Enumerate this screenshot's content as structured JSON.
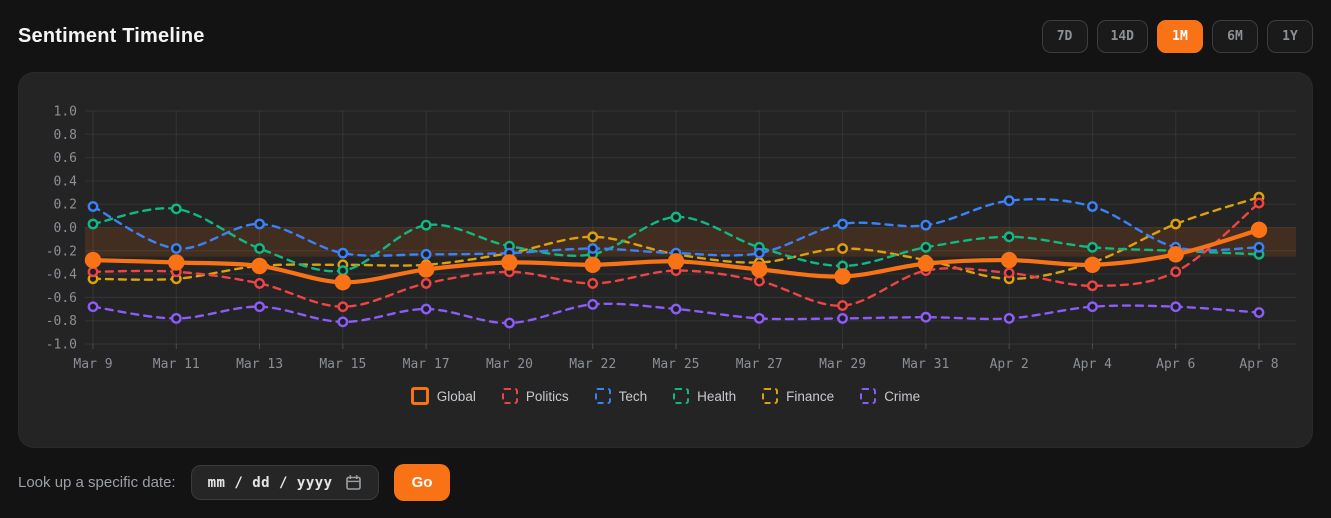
{
  "header": {
    "title": "Sentiment Timeline",
    "ranges": [
      {
        "label": "7D",
        "active": false
      },
      {
        "label": "14D",
        "active": false
      },
      {
        "label": "1M",
        "active": true
      },
      {
        "label": "6M",
        "active": false
      },
      {
        "label": "1Y",
        "active": false
      }
    ]
  },
  "colors": {
    "accent": "#f97316",
    "panel_bg": "#242424",
    "page_bg": "#131313",
    "grid": "rgba(255,255,255,0.07)",
    "axis_text": "#8b8f97"
  },
  "chart_data": {
    "type": "line",
    "title": "Sentiment Timeline",
    "xlabel": "",
    "ylabel": "",
    "ylim": [
      -1.0,
      1.0
    ],
    "ytick_step": 0.2,
    "grid": true,
    "legend_position": "bottom",
    "highlight_band": {
      "from": 0.0,
      "to": -0.25,
      "color": "rgba(249,115,22,0.14)"
    },
    "categories": [
      "Mar 9",
      "Mar 11",
      "Mar 13",
      "Mar 15",
      "Mar 17",
      "Mar 20",
      "Mar 22",
      "Mar 25",
      "Mar 27",
      "Mar 29",
      "Mar 31",
      "Apr 2",
      "Apr 4",
      "Apr 6",
      "Apr 8"
    ],
    "series": [
      {
        "name": "Global",
        "color": "#f97316",
        "style": "solid",
        "emphasis": true,
        "values": [
          -0.28,
          -0.3,
          -0.33,
          -0.47,
          -0.36,
          -0.3,
          -0.32,
          -0.29,
          -0.36,
          -0.42,
          -0.31,
          -0.28,
          -0.32,
          -0.23,
          -0.02
        ]
      },
      {
        "name": "Politics",
        "color": "#ef4444",
        "style": "dashed",
        "emphasis": false,
        "values": [
          -0.38,
          -0.38,
          -0.48,
          -0.68,
          -0.48,
          -0.38,
          -0.48,
          -0.37,
          -0.46,
          -0.67,
          -0.37,
          -0.39,
          -0.5,
          -0.38,
          0.21
        ]
      },
      {
        "name": "Tech",
        "color": "#3b82f6",
        "style": "dashed",
        "emphasis": false,
        "values": [
          0.18,
          -0.18,
          0.03,
          -0.22,
          -0.23,
          -0.22,
          -0.18,
          -0.22,
          -0.22,
          0.03,
          0.02,
          0.23,
          0.18,
          -0.17,
          -0.17
        ]
      },
      {
        "name": "Health",
        "color": "#10b981",
        "style": "dashed",
        "emphasis": false,
        "values": [
          0.03,
          0.16,
          -0.18,
          -0.37,
          0.02,
          -0.16,
          -0.23,
          0.09,
          -0.17,
          -0.33,
          -0.17,
          -0.08,
          -0.17,
          -0.2,
          -0.23
        ]
      },
      {
        "name": "Finance",
        "color": "#dda20b",
        "style": "dashed",
        "emphasis": false,
        "values": [
          -0.44,
          -0.44,
          -0.33,
          -0.32,
          -0.32,
          -0.22,
          -0.08,
          -0.23,
          -0.3,
          -0.18,
          -0.28,
          -0.44,
          -0.3,
          0.03,
          0.26
        ]
      },
      {
        "name": "Crime",
        "color": "#8b5cf6",
        "style": "dashed",
        "emphasis": false,
        "values": [
          -0.68,
          -0.78,
          -0.68,
          -0.81,
          -0.7,
          -0.82,
          -0.66,
          -0.7,
          -0.78,
          -0.78,
          -0.77,
          -0.78,
          -0.68,
          -0.68,
          -0.73
        ]
      }
    ]
  },
  "lookup": {
    "label": "Look up a specific date:",
    "placeholder": "mm / dd / yyyy",
    "go_label": "Go"
  }
}
